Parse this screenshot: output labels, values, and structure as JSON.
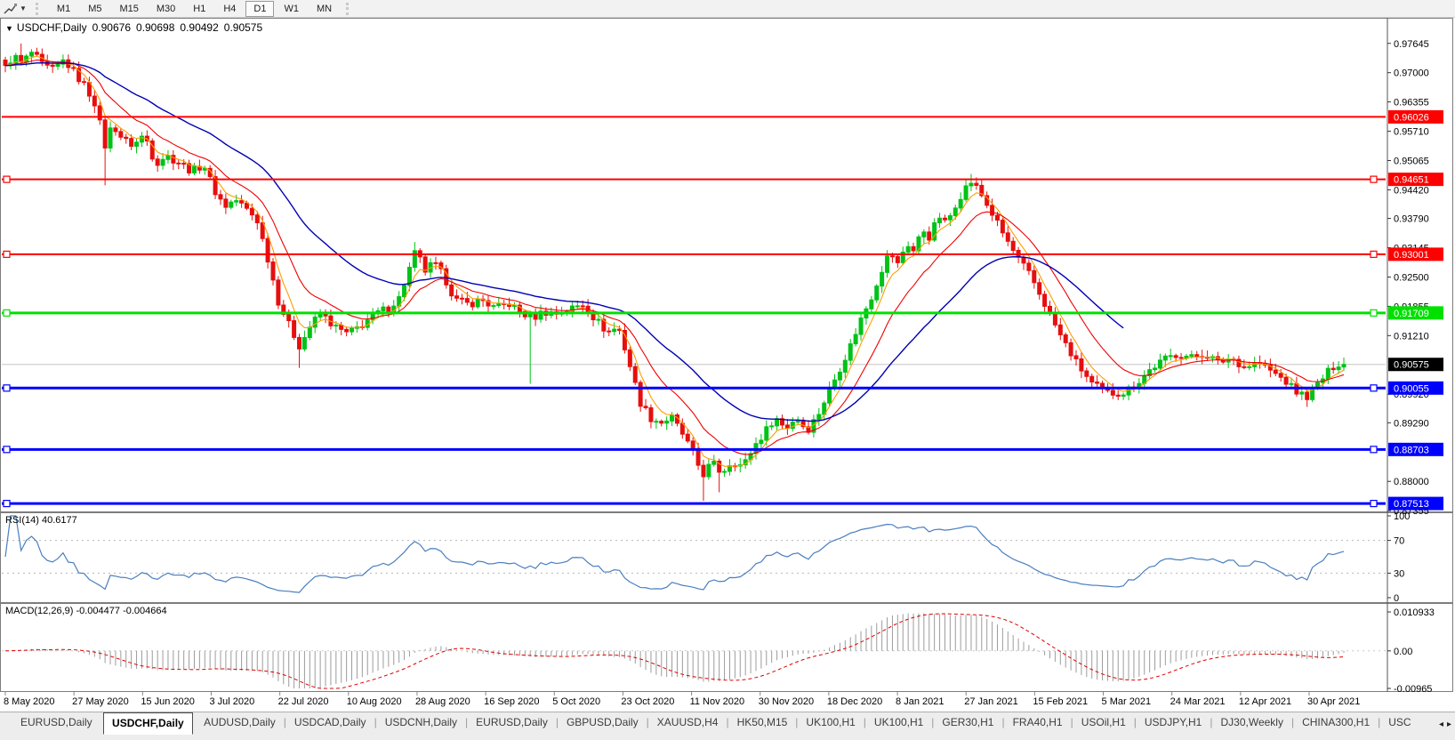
{
  "toolbar": {
    "tool_icon": "trendline-tool-icon",
    "dropdown_icon": "caret-down-icon",
    "timeframes": [
      "M1",
      "M5",
      "M15",
      "M30",
      "H1",
      "H4",
      "D1",
      "W1",
      "MN"
    ],
    "active_timeframe": "D1"
  },
  "chart_header": {
    "menu_icon": "caret-down-icon",
    "symbol": "USDCHF,Daily",
    "open": "0.90676",
    "high": "0.90698",
    "low": "0.90492",
    "close": "0.90575"
  },
  "chart_data": {
    "type": "candlestick",
    "symbol": "USDCHF",
    "period": "Daily",
    "bars": 256,
    "candle_up_color": "#00c217",
    "candle_down_color": "#e60f0f",
    "price_scale": {
      "min": 0.87358,
      "max": 0.98169,
      "ticks": [
        "0.97645",
        "0.97000",
        "0.96355",
        "0.95710",
        "0.95065",
        "0.94420",
        "0.93790",
        "0.93145",
        "0.92500",
        "0.91855",
        "0.91210",
        "0.89920",
        "0.89290",
        "0.88000",
        "0.87355"
      ]
    },
    "current_price": {
      "value": 0.90575,
      "label": "0.90575",
      "line_color": "#c6c6c6",
      "badge_color": "#000000"
    },
    "horizontal_lines": [
      {
        "price": 0.96026,
        "label": "0.96026",
        "color": "#ff0000",
        "thickness": 2,
        "handles": false
      },
      {
        "price": 0.94651,
        "label": "0.94651",
        "color": "#ff0000",
        "thickness": 2,
        "handles": true
      },
      {
        "price": 0.93001,
        "label": "0.93001",
        "color": "#ff0000",
        "thickness": 2,
        "handles": true
      },
      {
        "price": 0.91709,
        "label": "0.91709",
        "color": "#00e100",
        "thickness": 3,
        "handles": true
      },
      {
        "price": 0.90055,
        "label": "0.90055",
        "color": "#0000ff",
        "thickness": 3,
        "handles": true
      },
      {
        "price": 0.88703,
        "label": "0.88703",
        "color": "#0000ff",
        "thickness": 3,
        "handles": true
      },
      {
        "price": 0.87513,
        "label": "0.87513",
        "color": "#0000ff",
        "thickness": 3,
        "handles": true
      }
    ],
    "moving_averages": [
      {
        "name": "fast-ma",
        "period": 5,
        "color": "#ff9d00",
        "width": 1.1,
        "end_frac": 1.0
      },
      {
        "name": "mid-ma",
        "period": 13,
        "color": "#f00000",
        "width": 1.1,
        "end_frac": 1.0
      },
      {
        "name": "slow-ma",
        "period": 34,
        "color": "#0000b4",
        "width": 1.4,
        "end_frac": 0.837
      }
    ],
    "close_path_anchors": [
      [
        0.0,
        0.971
      ],
      [
        0.006,
        0.9738
      ],
      [
        0.012,
        0.972
      ],
      [
        0.02,
        0.9745
      ],
      [
        0.028,
        0.9715
      ],
      [
        0.036,
        0.9705
      ],
      [
        0.044,
        0.9728
      ],
      [
        0.052,
        0.9698
      ],
      [
        0.06,
        0.9668
      ],
      [
        0.068,
        0.9628
      ],
      [
        0.074,
        0.9535
      ],
      [
        0.08,
        0.9588
      ],
      [
        0.088,
        0.9552
      ],
      [
        0.096,
        0.954
      ],
      [
        0.104,
        0.9565
      ],
      [
        0.112,
        0.95
      ],
      [
        0.12,
        0.9518
      ],
      [
        0.13,
        0.9502
      ],
      [
        0.14,
        0.9482
      ],
      [
        0.148,
        0.95
      ],
      [
        0.156,
        0.9442
      ],
      [
        0.164,
        0.9406
      ],
      [
        0.172,
        0.942
      ],
      [
        0.18,
        0.94
      ],
      [
        0.188,
        0.9377
      ],
      [
        0.196,
        0.9292
      ],
      [
        0.204,
        0.9196
      ],
      [
        0.212,
        0.9144
      ],
      [
        0.22,
        0.9097
      ],
      [
        0.228,
        0.9144
      ],
      [
        0.236,
        0.917
      ],
      [
        0.246,
        0.914
      ],
      [
        0.256,
        0.9124
      ],
      [
        0.266,
        0.9144
      ],
      [
        0.276,
        0.9168
      ],
      [
        0.286,
        0.9182
      ],
      [
        0.294,
        0.9202
      ],
      [
        0.301,
        0.926
      ],
      [
        0.307,
        0.931
      ],
      [
        0.313,
        0.9262
      ],
      [
        0.32,
        0.928
      ],
      [
        0.328,
        0.925
      ],
      [
        0.336,
        0.92
      ],
      [
        0.346,
        0.919
      ],
      [
        0.356,
        0.92
      ],
      [
        0.366,
        0.918
      ],
      [
        0.376,
        0.9192
      ],
      [
        0.386,
        0.917
      ],
      [
        0.394,
        0.916
      ],
      [
        0.402,
        0.9174
      ],
      [
        0.412,
        0.917
      ],
      [
        0.422,
        0.918
      ],
      [
        0.432,
        0.919
      ],
      [
        0.44,
        0.916
      ],
      [
        0.45,
        0.9128
      ],
      [
        0.458,
        0.914
      ],
      [
        0.466,
        0.9062
      ],
      [
        0.474,
        0.8976
      ],
      [
        0.482,
        0.894
      ],
      [
        0.49,
        0.893
      ],
      [
        0.498,
        0.894
      ],
      [
        0.506,
        0.8904
      ],
      [
        0.514,
        0.886
      ],
      [
        0.521,
        0.8814
      ],
      [
        0.528,
        0.8842
      ],
      [
        0.535,
        0.8818
      ],
      [
        0.543,
        0.8846
      ],
      [
        0.551,
        0.8832
      ],
      [
        0.559,
        0.8876
      ],
      [
        0.567,
        0.8906
      ],
      [
        0.575,
        0.8942
      ],
      [
        0.583,
        0.8916
      ],
      [
        0.591,
        0.8942
      ],
      [
        0.599,
        0.8912
      ],
      [
        0.607,
        0.8946
      ],
      [
        0.615,
        0.8996
      ],
      [
        0.623,
        0.9046
      ],
      [
        0.631,
        0.9096
      ],
      [
        0.639,
        0.9156
      ],
      [
        0.647,
        0.9206
      ],
      [
        0.655,
        0.9268
      ],
      [
        0.661,
        0.9306
      ],
      [
        0.667,
        0.9276
      ],
      [
        0.673,
        0.9326
      ],
      [
        0.679,
        0.9306
      ],
      [
        0.685,
        0.9356
      ],
      [
        0.691,
        0.9336
      ],
      [
        0.697,
        0.9386
      ],
      [
        0.703,
        0.9366
      ],
      [
        0.709,
        0.9406
      ],
      [
        0.715,
        0.9436
      ],
      [
        0.721,
        0.9461
      ],
      [
        0.727,
        0.9442
      ],
      [
        0.736,
        0.9396
      ],
      [
        0.746,
        0.9342
      ],
      [
        0.756,
        0.9292
      ],
      [
        0.766,
        0.9252
      ],
      [
        0.776,
        0.9194
      ],
      [
        0.788,
        0.9122
      ],
      [
        0.8,
        0.9062
      ],
      [
        0.812,
        0.9014
      ],
      [
        0.824,
        0.8994
      ],
      [
        0.836,
        0.8996
      ],
      [
        0.846,
        0.9018
      ],
      [
        0.856,
        0.9048
      ],
      [
        0.866,
        0.9068
      ],
      [
        0.876,
        0.9082
      ],
      [
        0.886,
        0.9072
      ],
      [
        0.896,
        0.9082
      ],
      [
        0.906,
        0.9062
      ],
      [
        0.916,
        0.9072
      ],
      [
        0.926,
        0.9052
      ],
      [
        0.936,
        0.9062
      ],
      [
        0.946,
        0.9042
      ],
      [
        0.956,
        0.9022
      ],
      [
        0.964,
        0.8998
      ],
      [
        0.972,
        0.8986
      ],
      [
        0.98,
        0.9012
      ],
      [
        0.988,
        0.904
      ],
      [
        1.0,
        0.90575
      ]
    ],
    "wick_lows": [
      [
        0.074,
        0.9452
      ],
      [
        0.22,
        0.905
      ],
      [
        0.394,
        0.9015
      ],
      [
        0.521,
        0.8757
      ],
      [
        0.535,
        0.8776
      ],
      [
        0.972,
        0.8964
      ]
    ],
    "wick_highs": [
      [
        0.01,
        0.9764
      ],
      [
        0.307,
        0.9327
      ],
      [
        0.721,
        0.9477
      ]
    ],
    "date_labels": [
      "8 May 2020",
      "27 May 2020",
      "15 Jun 2020",
      "3 Jul 2020",
      "22 Jul 2020",
      "10 Aug 2020",
      "28 Aug 2020",
      "16 Sep 2020",
      "5 Oct 2020",
      "23 Oct 2020",
      "11 Nov 2020",
      "30 Nov 2020",
      "18 Dec 2020",
      "8 Jan 2021",
      "27 Jan 2021",
      "15 Feb 2021",
      "5 Mar 2021",
      "24 Mar 2021",
      "12 Apr 2021",
      "30 Apr 2021"
    ]
  },
  "rsi_panel": {
    "label": "RSI(14) 40.6177",
    "period": 14,
    "current_value": "40.6177",
    "line_color": "#4a7ec0",
    "level_color": "#b8b8b8",
    "ticks": [
      "100",
      "70",
      "30",
      "0"
    ],
    "upper_level": 70,
    "lower_level": 30
  },
  "macd_panel": {
    "label": "MACD(12,26,9) -0.004477 -0.004664",
    "fast": 12,
    "slow": 26,
    "signal": 9,
    "main_value": "-0.004477",
    "signal_value": "-0.004664",
    "histogram_color": "#9c9c9c",
    "signal_color": "#e00000",
    "axis_max": 0.010933,
    "axis_min": -0.00965,
    "ticks": [
      {
        "label": "0.010933",
        "value": 0.010933
      },
      {
        "label": "0.00",
        "value": 0
      },
      {
        "label": "-0.00965",
        "value": -0.00965
      }
    ]
  },
  "tabs": {
    "scroll_left_icon": "tab-scroll-left-icon",
    "scroll_right_icon": "tab-scroll-right-icon",
    "active_index": 1,
    "items": [
      "EURUSD,Daily",
      "USDCHF,Daily",
      "AUDUSD,Daily",
      "USDCAD,Daily",
      "USDCNH,Daily",
      "EURUSD,Daily",
      "GBPUSD,Daily",
      "XAUUSD,H4",
      "HK50,M15",
      "UK100,H1",
      "UK100,H1",
      "GER30,H1",
      "FRA40,H1",
      "USOil,H1",
      "USDJPY,H1",
      "DJ30,Weekly",
      "CHINA300,H1",
      "USC"
    ]
  }
}
